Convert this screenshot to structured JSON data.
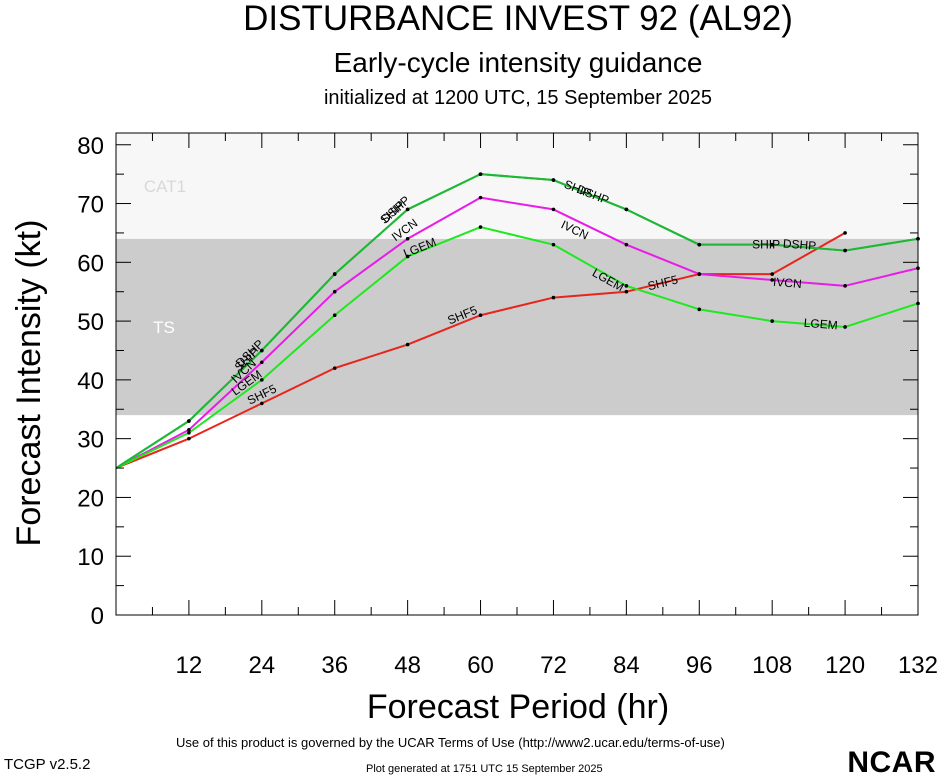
{
  "header": {
    "title": "DISTURBANCE INVEST 92 (AL92)",
    "subtitle": "Early-cycle intensity guidance",
    "initialized": "initialized at 1200 UTC, 15 September 2025"
  },
  "footer": {
    "terms": "Use of this product is governed by the UCAR Terms of Use (http://www2.ucar.edu/terms-of-use)",
    "generated": "Plot generated at 1751 UTC   15 September 2025",
    "version": "TCGP v2.5.2",
    "logo_text": "NCAR"
  },
  "chart_data": {
    "type": "line",
    "xlabel": "Forecast Period (hr)",
    "ylabel": "Forecast Intensity (kt)",
    "xlim": [
      0,
      132
    ],
    "ylim": [
      0,
      80
    ],
    "xticks": [
      12,
      24,
      36,
      48,
      60,
      72,
      84,
      96,
      108,
      120,
      132
    ],
    "yticks": [
      0,
      10,
      20,
      30,
      40,
      50,
      60,
      70,
      80
    ],
    "grid": false,
    "bands": [
      {
        "name": "TS",
        "from": 34,
        "to": 64,
        "color": "#cccccc"
      },
      {
        "name": "CAT1",
        "from": 64,
        "to": 83,
        "color": "#f7f7f7"
      }
    ],
    "series": [
      {
        "name": "SHF5",
        "color": "#e8251c",
        "x": [
          0,
          12,
          24,
          36,
          48,
          60,
          72,
          84,
          96,
          108,
          120
        ],
        "values": [
          25,
          30,
          36,
          42,
          46,
          51,
          54,
          55,
          58,
          58,
          65
        ]
      },
      {
        "name": "IVCN",
        "color": "#e81be8",
        "x": [
          0,
          12,
          24,
          36,
          48,
          60,
          72,
          84,
          96,
          108,
          120,
          132
        ],
        "values": [
          25,
          31.5,
          43,
          55,
          64,
          71,
          69,
          63,
          58,
          57,
          56,
          59
        ]
      },
      {
        "name": "LGEM",
        "color": "#1ee81e",
        "x": [
          0,
          12,
          24,
          36,
          48,
          60,
          72,
          84,
          96,
          108,
          120,
          132
        ],
        "values": [
          25,
          31,
          40,
          51,
          61,
          66,
          63,
          56,
          52,
          50,
          49,
          53
        ]
      },
      {
        "name": "SHIP",
        "color": "#1fb836",
        "x": [
          0,
          12,
          24,
          36,
          48,
          60,
          72,
          84,
          96,
          108,
          120,
          132
        ],
        "values": [
          25,
          33,
          45,
          58,
          69,
          75,
          74,
          69,
          63,
          63,
          62,
          64
        ]
      },
      {
        "name": "DSHP",
        "color": "#1fb836",
        "x": [
          0,
          12,
          24,
          36,
          48,
          60,
          72,
          84,
          96,
          108,
          120,
          132
        ],
        "values": [
          25,
          33,
          45,
          58,
          69,
          75,
          74,
          69,
          63,
          63,
          62,
          64
        ]
      }
    ],
    "labels": [
      {
        "text": "SHF5",
        "x": 24,
        "y": 37.5,
        "series": "SHF5"
      },
      {
        "text": "SHF5",
        "x": 57,
        "y": 51,
        "series": "SHF5"
      },
      {
        "text": "SHF5",
        "x": 90,
        "y": 56.5,
        "series": "SHF5"
      },
      {
        "text": "IVCN",
        "x": 21,
        "y": 41.5,
        "series": "IVCN"
      },
      {
        "text": "IVCN",
        "x": 47.5,
        "y": 65.5,
        "series": "IVCN"
      },
      {
        "text": "IVCN",
        "x": 75.5,
        "y": 65.5,
        "series": "IVCN"
      },
      {
        "text": "IVCN",
        "x": 110.5,
        "y": 56.5,
        "series": "IVCN"
      },
      {
        "text": "LGEM",
        "x": 21.5,
        "y": 39.5,
        "series": "LGEM"
      },
      {
        "text": "LGEM",
        "x": 50,
        "y": 62.5,
        "series": "LGEM"
      },
      {
        "text": "LGEM",
        "x": 81,
        "y": 57,
        "series": "LGEM"
      },
      {
        "text": "LGEM",
        "x": 116,
        "y": 49.5,
        "series": "LGEM"
      },
      {
        "text": "SHIP",
        "x": 21.5,
        "y": 43.5,
        "series": "SHIP"
      },
      {
        "text": "DSHP",
        "x": 22,
        "y": 44.5,
        "series": "DSHP"
      },
      {
        "text": "SHIP",
        "x": 45.5,
        "y": 68.5,
        "series": "SHIP"
      },
      {
        "text": "DSHP",
        "x": 46,
        "y": 69,
        "series": "DSHP"
      },
      {
        "text": "SHIP",
        "x": 76,
        "y": 72.5,
        "series": "SHIP"
      },
      {
        "text": "DSHP",
        "x": 78.5,
        "y": 71.5,
        "series": "DSHP"
      },
      {
        "text": "SHIP",
        "x": 107,
        "y": 63,
        "series": "SHIP"
      },
      {
        "text": "DSHP",
        "x": 112.5,
        "y": 63,
        "series": "DSHP"
      }
    ]
  }
}
